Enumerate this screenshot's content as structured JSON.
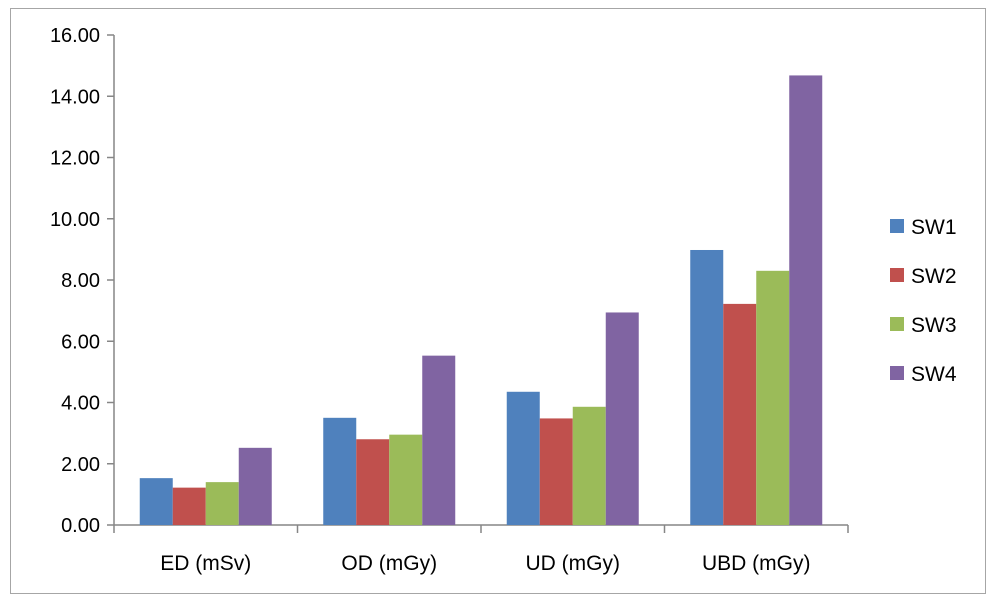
{
  "chart_data": {
    "type": "bar",
    "categories": [
      "ED (mSv)",
      "OD (mGy)",
      "UD (mGy)",
      "UBD (mGy)"
    ],
    "series": [
      {
        "name": "SW1",
        "color": "#4f81bd",
        "values": [
          1.53,
          3.5,
          4.35,
          8.98
        ]
      },
      {
        "name": "SW2",
        "color": "#c0504d",
        "values": [
          1.22,
          2.8,
          3.48,
          7.22
        ]
      },
      {
        "name": "SW3",
        "color": "#9bbb59",
        "values": [
          1.4,
          2.95,
          3.86,
          8.3
        ]
      },
      {
        "name": "SW4",
        "color": "#8064a2",
        "values": [
          2.52,
          5.53,
          6.94,
          14.68
        ]
      }
    ],
    "yticks": [
      "0.00",
      "2.00",
      "4.00",
      "6.00",
      "8.00",
      "10.00",
      "12.00",
      "14.00",
      "16.00"
    ],
    "ylim": [
      0,
      16
    ],
    "grid": false,
    "legend_position": "right",
    "title": "",
    "xlabel": "",
    "ylabel": ""
  }
}
